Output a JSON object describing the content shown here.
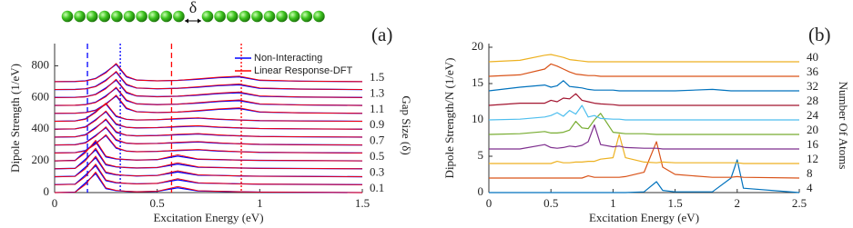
{
  "chart_data": [
    {
      "type": "line",
      "panel_label": "(a)",
      "annotation": "δ",
      "xlabel": "Excitation Energy (eV)",
      "ylabel": "Dipole Strength (1/eV)",
      "y2label": "Gap Size (δ)",
      "x": [
        0,
        0.1,
        0.15,
        0.2,
        0.25,
        0.3,
        0.35,
        0.4,
        0.5,
        0.6,
        0.7,
        0.8,
        0.9,
        1.0,
        1.2,
        1.5
      ],
      "xlim": [
        0,
        1.5
      ],
      "xticks": [
        0,
        0.5,
        1,
        1.5
      ],
      "ylim": [
        0,
        940
      ],
      "yticks": [
        0,
        200,
        400,
        600,
        800
      ],
      "legend": "upper right",
      "curve_labels": [
        "0.1",
        null,
        "0.3",
        null,
        "0.5",
        null,
        "0.7",
        null,
        "0.9",
        null,
        "1.1",
        null,
        "1.3",
        null,
        "1.5"
      ],
      "series": [
        {
          "name": "Non-Interacting",
          "color": "#0000ff",
          "curves": [
            [
              0,
              3,
              60,
              120,
              25,
              12,
              8,
              5,
              8,
              30,
              10,
              8,
              5,
              3,
              2,
              0
            ],
            [
              50,
              53,
              110,
              170,
              75,
              62,
              58,
              55,
              58,
              80,
              60,
              58,
              55,
              53,
              52,
              50
            ],
            [
              100,
              103,
              160,
              220,
              125,
              112,
              108,
              105,
              108,
              130,
              110,
              108,
              105,
              103,
              102,
              100
            ],
            [
              150,
              153,
              210,
              270,
              175,
              162,
              158,
              155,
              158,
              180,
              160,
              158,
              155,
              153,
              152,
              150
            ],
            [
              200,
              203,
              260,
              320,
              225,
              212,
              208,
              205,
              208,
              230,
              210,
              208,
              205,
              203,
              202,
              200
            ],
            [
              250,
              252,
              265,
              310,
              360,
              280,
              262,
              258,
              260,
              265,
              270,
              262,
              258,
              254,
              252,
              250
            ],
            [
              300,
              302,
              315,
              360,
              410,
              330,
              312,
              308,
              310,
              315,
              320,
              312,
              308,
              304,
              302,
              300
            ],
            [
              350,
              352,
              365,
              410,
              460,
              380,
              362,
              358,
              360,
              365,
              370,
              362,
              358,
              354,
              352,
              350
            ],
            [
              400,
              402,
              415,
              460,
              510,
              430,
              412,
              408,
              410,
              415,
              420,
              412,
              408,
              404,
              402,
              400
            ],
            [
              450,
              452,
              465,
              510,
              560,
              480,
              462,
              458,
              460,
              465,
              470,
              462,
              458,
              454,
              452,
              450
            ],
            [
              500,
              501,
              505,
              520,
              560,
              610,
              530,
              510,
              505,
              508,
              515,
              525,
              530,
              508,
              503,
              500
            ],
            [
              550,
              551,
              555,
              570,
              610,
              660,
              580,
              560,
              555,
              558,
              565,
              575,
              580,
              558,
              553,
              550
            ],
            [
              600,
              601,
              605,
              620,
              660,
              710,
              630,
              610,
              605,
              608,
              615,
              625,
              630,
              608,
              603,
              600
            ],
            [
              650,
              651,
              655,
              670,
              710,
              760,
              680,
              660,
              655,
              658,
              665,
              675,
              680,
              658,
              653,
              650
            ],
            [
              700,
              701,
              705,
              720,
              760,
              810,
              730,
              710,
              705,
              708,
              715,
              725,
              730,
              708,
              703,
              700
            ]
          ]
        },
        {
          "name": "Linear Response-DFT",
          "color": "#ff0000",
          "curves": [
            [
              0,
              2,
              50,
              130,
              30,
              14,
              8,
              5,
              8,
              38,
              12,
              8,
              5,
              3,
              2,
              0
            ],
            [
              50,
              52,
              100,
              180,
              80,
              64,
              58,
              55,
              58,
              88,
              62,
              58,
              55,
              53,
              52,
              50
            ],
            [
              100,
              102,
              150,
              230,
              130,
              114,
              108,
              105,
              108,
              138,
              112,
              108,
              105,
              103,
              102,
              100
            ],
            [
              150,
              152,
              200,
              280,
              180,
              164,
              158,
              155,
              158,
              188,
              162,
              158,
              155,
              153,
              152,
              150
            ],
            [
              200,
              202,
              250,
              330,
              230,
              214,
              208,
              205,
              208,
              238,
              212,
              208,
              205,
              203,
              202,
              200
            ],
            [
              250,
              252,
              262,
              305,
              365,
              285,
              262,
              258,
              260,
              268,
              272,
              264,
              258,
              254,
              252,
              250
            ],
            [
              300,
              302,
              312,
              355,
              415,
              335,
              312,
              308,
              310,
              318,
              322,
              314,
              308,
              304,
              302,
              300
            ],
            [
              350,
              352,
              362,
              405,
              465,
              385,
              362,
              358,
              360,
              368,
              372,
              364,
              358,
              354,
              352,
              350
            ],
            [
              400,
              402,
              412,
              455,
              515,
              435,
              412,
              408,
              410,
              418,
              422,
              414,
              408,
              404,
              402,
              400
            ],
            [
              450,
              452,
              462,
              505,
              565,
              485,
              462,
              458,
              460,
              468,
              472,
              464,
              458,
              454,
              452,
              450
            ],
            [
              500,
              501,
              504,
              518,
              555,
              615,
              535,
              510,
              505,
              508,
              518,
              528,
              535,
              510,
              503,
              500
            ],
            [
              550,
              551,
              554,
              568,
              605,
              665,
              585,
              560,
              555,
              558,
              568,
              578,
              585,
              560,
              553,
              550
            ],
            [
              600,
              601,
              604,
              618,
              655,
              715,
              635,
              610,
              605,
              608,
              618,
              628,
              635,
              610,
              603,
              600
            ],
            [
              650,
              651,
              654,
              668,
              705,
              765,
              685,
              660,
              655,
              658,
              668,
              678,
              685,
              660,
              653,
              650
            ],
            [
              700,
              701,
              704,
              718,
              755,
              815,
              735,
              710,
              705,
              708,
              718,
              728,
              735,
              710,
              703,
              700
            ]
          ]
        }
      ],
      "vlines": [
        {
          "x": 0.16,
          "color": "#0000ff",
          "style": "dashed"
        },
        {
          "x": 0.32,
          "color": "#0000ff",
          "style": "dotted"
        },
        {
          "x": 0.57,
          "color": "#ff0000",
          "style": "dashed"
        },
        {
          "x": 0.91,
          "color": "#ff0000",
          "style": "dotted"
        }
      ]
    },
    {
      "type": "line",
      "panel_label": "(b)",
      "xlabel": "Excitation Energy (eV)",
      "ylabel": "Dipole Strength/N (1/eV)",
      "y2label": "Number Of Atoms",
      "x": [
        0,
        0.25,
        0.45,
        0.5,
        0.55,
        0.6,
        0.65,
        0.7,
        0.75,
        0.8,
        0.85,
        0.9,
        1.0,
        1.05,
        1.1,
        1.25,
        1.35,
        1.4,
        1.5,
        1.8,
        1.95,
        2.0,
        2.05,
        2.5
      ],
      "xlim": [
        0,
        2.5
      ],
      "xticks": [
        0,
        0.5,
        1,
        1.5,
        2,
        2.5
      ],
      "ylim": [
        0,
        20.5
      ],
      "yticks": [
        0,
        5,
        10,
        15,
        20
      ],
      "series": [
        {
          "name": "4",
          "color": "#0072bd",
          "values": [
            0,
            0,
            0,
            0,
            0,
            0,
            0,
            0,
            0,
            0,
            0,
            0,
            0,
            0,
            0,
            0.1,
            1.5,
            0.3,
            0.1,
            0.1,
            2,
            4.5,
            0.6,
            0
          ]
        },
        {
          "name": "8",
          "color": "#d95319",
          "values": [
            2,
            2,
            2,
            2,
            2,
            2,
            2,
            2,
            2,
            2.3,
            2.1,
            2.1,
            2.1,
            2.1,
            2.2,
            2.8,
            7,
            3.5,
            2.5,
            2.1,
            2.1,
            2.2,
            2.1,
            2
          ]
        },
        {
          "name": "12",
          "color": "#edb120",
          "values": [
            4,
            4,
            4,
            4,
            4.3,
            4.1,
            4.1,
            4.2,
            4.2,
            4.3,
            4.3,
            4.6,
            4.8,
            8,
            4.8,
            4.2,
            4.1,
            4.2,
            4.1,
            4.1,
            4.1,
            4.1,
            4,
            4
          ]
        },
        {
          "name": "16",
          "color": "#7e2f8e",
          "values": [
            6,
            6,
            6.6,
            6.2,
            6.1,
            6.2,
            6.4,
            6.3,
            6.5,
            7,
            9.3,
            6.6,
            6.3,
            6.4,
            6.2,
            6.1,
            6.1,
            6,
            6,
            6,
            6,
            6,
            6,
            6
          ]
        },
        {
          "name": "20",
          "color": "#77ac30",
          "values": [
            8,
            8.1,
            8.4,
            8.2,
            8.2,
            8.3,
            8.6,
            9.8,
            8.9,
            8.8,
            10,
            10.9,
            8.3,
            8.2,
            8.1,
            8.1,
            8,
            8,
            8,
            8,
            8,
            8,
            8,
            8
          ]
        },
        {
          "name": "24",
          "color": "#4dbeee",
          "values": [
            10,
            10.1,
            10.4,
            10.6,
            11,
            10.5,
            11.3,
            10.8,
            12,
            10.4,
            10.6,
            10.2,
            10.1,
            10.1,
            10,
            10,
            10,
            10,
            10,
            10,
            10,
            10,
            10,
            10
          ]
        },
        {
          "name": "28",
          "color": "#a2142f",
          "values": [
            12,
            12.3,
            12.3,
            12.7,
            12.5,
            13,
            12.9,
            13.6,
            12.7,
            12.5,
            12.3,
            12.2,
            12.1,
            12,
            12,
            12,
            12,
            12,
            12,
            12,
            12,
            12,
            12,
            12
          ]
        },
        {
          "name": "32",
          "color": "#0072bd",
          "values": [
            14,
            14.5,
            14.8,
            14.5,
            14.7,
            15.4,
            14.6,
            14.5,
            14.4,
            14.2,
            14.1,
            14.1,
            14.1,
            14,
            14,
            14,
            14,
            14,
            14,
            14.2,
            14,
            14,
            14,
            14
          ]
        },
        {
          "name": "36",
          "color": "#d95319",
          "values": [
            16,
            16.2,
            17,
            17.7,
            17.4,
            17,
            16.6,
            16.3,
            16.2,
            16.1,
            16.1,
            16,
            16,
            16,
            16,
            16,
            16,
            16,
            16,
            16,
            16,
            16,
            16,
            16
          ]
        },
        {
          "name": "40",
          "color": "#edb120",
          "values": [
            18,
            18.2,
            18.9,
            19,
            18.8,
            18.6,
            18.3,
            18.2,
            18.1,
            18,
            18,
            18,
            18,
            18,
            18,
            18,
            18,
            18,
            18,
            18,
            18,
            18,
            18,
            18
          ]
        }
      ]
    }
  ]
}
